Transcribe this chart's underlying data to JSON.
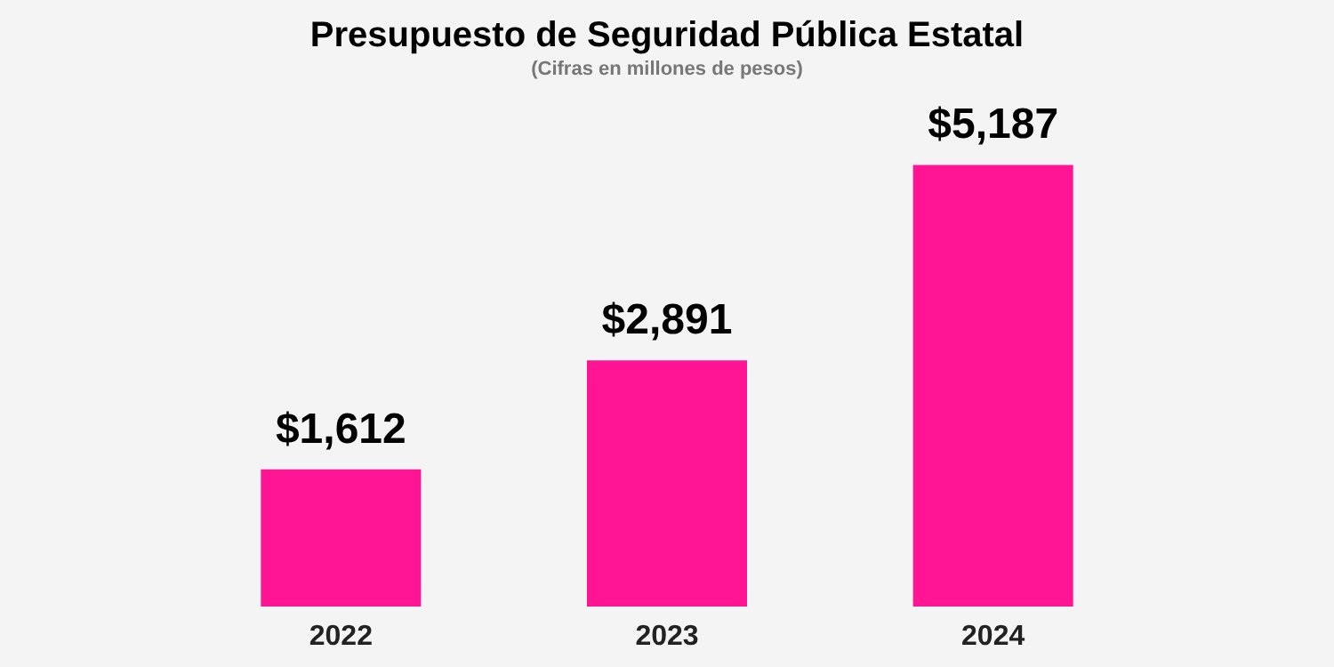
{
  "chart_data": {
    "type": "bar",
    "title": "Presupuesto de Seguridad Pública Estatal",
    "subtitle": "(Cifras en millones de pesos)",
    "categories": [
      "2022",
      "2023",
      "2024"
    ],
    "values": [
      1612,
      2891,
      5187
    ],
    "value_labels": [
      "$1,612",
      "$2,891",
      "$5,187"
    ],
    "color": "#ff1493",
    "grid": false
  }
}
